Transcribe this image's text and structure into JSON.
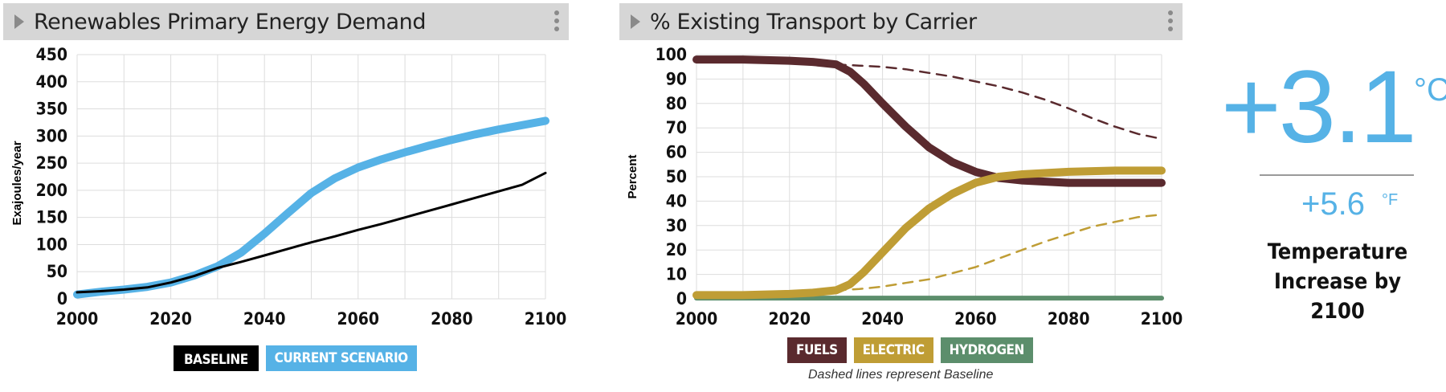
{
  "panels": [
    {
      "title": "Renewables Primary Energy Demand",
      "legend": [
        {
          "label": "BASELINE",
          "color": "#000000"
        },
        {
          "label": "CURRENT SCENARIO",
          "color": "#56b2e6"
        }
      ]
    },
    {
      "title": "% Existing Transport by Carrier",
      "legend": [
        {
          "label": "FUELS",
          "color": "#5a2a2e"
        },
        {
          "label": "ELECTRIC",
          "color": "#bf9d35"
        },
        {
          "label": "HYDROGEN",
          "color": "#5c8e6c"
        }
      ],
      "note": "Dashed lines represent Baseline"
    }
  ],
  "temperature": {
    "celsius_value": "+3.1",
    "celsius_unit": "°C",
    "fahrenheit_value": "+5.6",
    "fahrenheit_unit": "°F",
    "label": "Temperature Increase by 2100"
  },
  "chart_data": [
    {
      "type": "line",
      "ylabel": "Exajoules/year",
      "xlabel": "",
      "xlim": [
        2000,
        2100
      ],
      "ylim": [
        0,
        450
      ],
      "x_ticks": [
        2000,
        2020,
        2040,
        2060,
        2080,
        2100
      ],
      "y_ticks": [
        0,
        50,
        100,
        150,
        200,
        250,
        300,
        350,
        400,
        450
      ],
      "grid": true,
      "legend_position": "bottom",
      "series": [
        {
          "name": "CURRENT SCENARIO",
          "color": "#56b2e6",
          "width": 10,
          "dashed": false,
          "x": [
            2000,
            2005,
            2010,
            2015,
            2020,
            2025,
            2030,
            2035,
            2040,
            2045,
            2050,
            2055,
            2060,
            2065,
            2070,
            2075,
            2080,
            2085,
            2090,
            2095,
            2100
          ],
          "y": [
            8,
            13,
            17,
            22,
            30,
            43,
            60,
            85,
            120,
            158,
            195,
            222,
            242,
            257,
            270,
            282,
            293,
            303,
            312,
            320,
            328
          ]
        },
        {
          "name": "BASELINE",
          "color": "#000000",
          "width": 3,
          "dashed": false,
          "x": [
            2000,
            2005,
            2010,
            2015,
            2020,
            2025,
            2030,
            2035,
            2040,
            2045,
            2050,
            2055,
            2060,
            2065,
            2070,
            2075,
            2080,
            2085,
            2090,
            2095,
            2100
          ],
          "y": [
            12,
            14,
            17,
            21,
            30,
            42,
            57,
            68,
            80,
            92,
            104,
            115,
            127,
            138,
            150,
            162,
            174,
            186,
            198,
            210,
            232
          ]
        }
      ]
    },
    {
      "type": "line",
      "ylabel": "Percent",
      "xlabel": "",
      "xlim": [
        2000,
        2100
      ],
      "ylim": [
        0,
        100
      ],
      "x_ticks": [
        2000,
        2020,
        2040,
        2060,
        2080,
        2100
      ],
      "y_ticks": [
        0,
        10,
        20,
        30,
        40,
        50,
        60,
        70,
        80,
        90,
        100
      ],
      "grid": true,
      "legend_position": "bottom",
      "series": [
        {
          "name": "HYDROGEN",
          "color": "#5c8e6c",
          "width": 6,
          "dashed": false,
          "x": [
            2000,
            2020,
            2030,
            2040,
            2060,
            2080,
            2100
          ],
          "y": [
            0.3,
            0.3,
            0.3,
            0.3,
            0.3,
            0.3,
            0.3
          ]
        },
        {
          "name": "FUELS",
          "color": "#5a2a2e",
          "width": 2.5,
          "dashed": true,
          "x": [
            2030,
            2035,
            2040,
            2045,
            2050,
            2055,
            2060,
            2065,
            2070,
            2075,
            2080,
            2085,
            2090,
            2095,
            2100
          ],
          "y": [
            96,
            95.5,
            95,
            94,
            92.5,
            91,
            89,
            87,
            84.5,
            81.5,
            78,
            74,
            70.5,
            67.5,
            65.5
          ]
        },
        {
          "name": "ELECTRIC",
          "color": "#bf9d35",
          "width": 2.5,
          "dashed": true,
          "x": [
            2030,
            2035,
            2040,
            2045,
            2050,
            2055,
            2060,
            2065,
            2070,
            2075,
            2080,
            2085,
            2090,
            2095,
            2100
          ],
          "y": [
            3.5,
            4,
            5,
            6.5,
            8,
            10.5,
            13,
            16.5,
            20,
            23.5,
            26.5,
            29.5,
            31.5,
            33.5,
            34.5
          ]
        },
        {
          "name": "FUELS",
          "color": "#5a2a2e",
          "width": 10,
          "dashed": false,
          "x": [
            2000,
            2010,
            2020,
            2025,
            2030,
            2033,
            2036,
            2040,
            2045,
            2050,
            2055,
            2060,
            2065,
            2070,
            2080,
            2090,
            2100
          ],
          "y": [
            98,
            98,
            97.5,
            97,
            96,
            93,
            88,
            80,
            70.5,
            62,
            56,
            52,
            49.5,
            48.5,
            47.5,
            47.5,
            47.5
          ]
        },
        {
          "name": "ELECTRIC",
          "color": "#bf9d35",
          "width": 10,
          "dashed": false,
          "x": [
            2000,
            2010,
            2020,
            2025,
            2030,
            2033,
            2036,
            2040,
            2045,
            2050,
            2055,
            2060,
            2065,
            2070,
            2080,
            2090,
            2100
          ],
          "y": [
            1.5,
            1.5,
            2,
            2.5,
            3.5,
            6,
            11,
            19,
            29,
            37,
            43,
            47.5,
            50,
            51,
            52,
            52.5,
            52.5
          ]
        }
      ]
    }
  ]
}
